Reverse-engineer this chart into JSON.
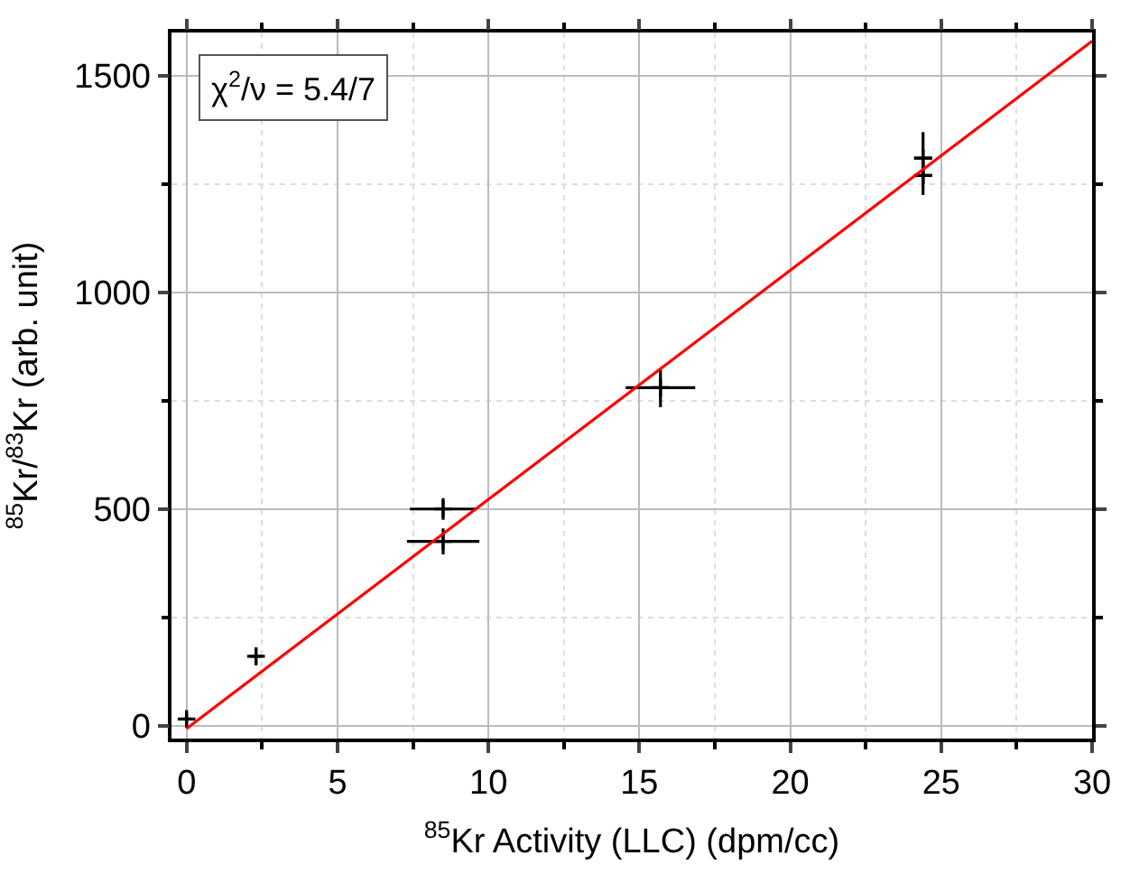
{
  "chart_data": {
    "type": "scatter",
    "xlabel": "$^{85}$Kr Activity (LLC) (dpm/cc)",
    "ylabel": "$^{85}$Kr/$^{83}$Kr (arb. unit)",
    "annotations": [
      "χ$^{2}$/ν = 5.4/7"
    ],
    "series": [
      {
        "color": "#000000",
        "marker": "cross",
        "x": [
          0,
          2.3,
          8.5,
          8.5,
          15.7,
          24.4,
          24.4
        ],
        "values": [
          15,
          160,
          500,
          425,
          780,
          1310,
          1270
        ],
        "errors": [
          15,
          20,
          25,
          30,
          45,
          60,
          45
        ],
        "xerrors": [
          0.2,
          0.2,
          1.1,
          1.2,
          1.15,
          0.3,
          0.3
        ]
      },
      {
        "type": "line",
        "marker": "none",
        "color": "#ff0000",
        "x": [
          0,
          30
        ],
        "values": [
          -7,
          1580
        ]
      }
    ],
    "xlim": [
      -0.5,
      30
    ],
    "ylim": [
      -30,
      1600
    ],
    "xticks": [
      0,
      5,
      10,
      15,
      20,
      25,
      30
    ],
    "yticks": [
      0,
      500,
      1000,
      1500
    ],
    "grid": true,
    "line_style": "solid"
  }
}
